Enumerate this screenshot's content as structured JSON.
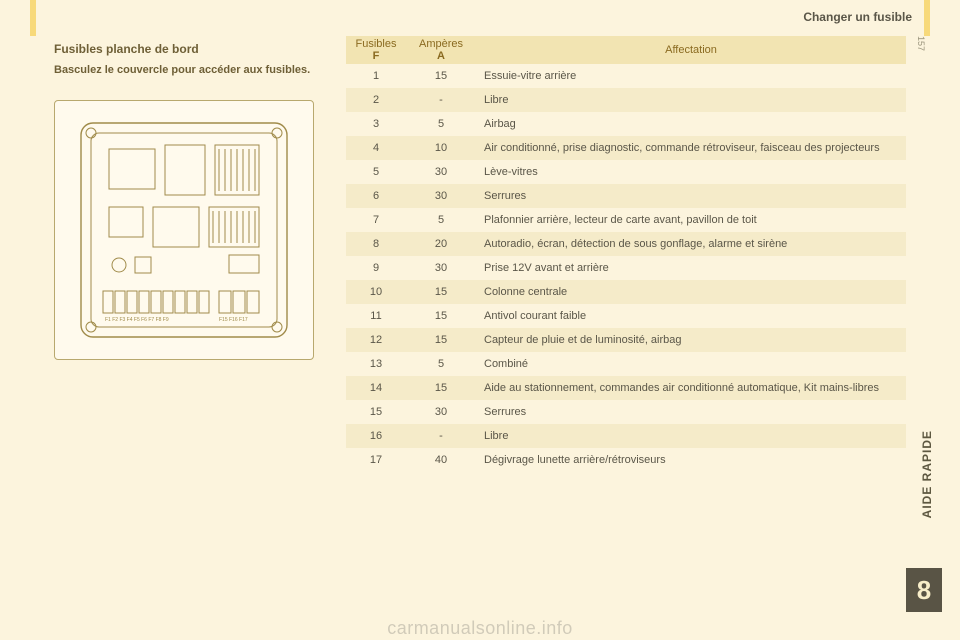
{
  "colors": {
    "page_bg": "#fcf4dd",
    "accent": "#f7d97a",
    "header_bg": "#f2e4b2",
    "header_text": "#8a6a20",
    "row_alt": "#f5ebc9",
    "body_text": "#5a5648",
    "section_block_bg": "#595445",
    "section_block_fg": "#f8eec9",
    "fusebox_bg": "#fffaed",
    "fusebox_border": "#b8a86e"
  },
  "header_right": "Changer un fusible",
  "page_number": "157",
  "left": {
    "title": "Fusibles planche de bord",
    "instruction": "Basculez le couvercle pour accéder aux fusibles."
  },
  "table": {
    "columns": {
      "fuse_label": "Fusibles",
      "fuse_sub": "F",
      "amp_label": "Ampères",
      "amp_sub": "A",
      "affect": "Affectation"
    },
    "rows": [
      {
        "f": "1",
        "a": "15",
        "d": "Essuie-vitre arrière"
      },
      {
        "f": "2",
        "a": "-",
        "d": "Libre"
      },
      {
        "f": "3",
        "a": "5",
        "d": "Airbag"
      },
      {
        "f": "4",
        "a": "10",
        "d": "Air conditionné, prise diagnostic, commande rétroviseur, faisceau des projecteurs"
      },
      {
        "f": "5",
        "a": "30",
        "d": "Lève-vitres"
      },
      {
        "f": "6",
        "a": "30",
        "d": "Serrures"
      },
      {
        "f": "7",
        "a": "5",
        "d": "Plafonnier arrière, lecteur de carte avant, pavillon de toit"
      },
      {
        "f": "8",
        "a": "20",
        "d": "Autoradio, écran, détection de sous gonflage, alarme et sirène"
      },
      {
        "f": "9",
        "a": "30",
        "d": "Prise 12V avant et arrière"
      },
      {
        "f": "10",
        "a": "15",
        "d": "Colonne centrale"
      },
      {
        "f": "11",
        "a": "15",
        "d": "Antivol courant faible"
      },
      {
        "f": "12",
        "a": "15",
        "d": "Capteur de pluie et de luminosité, airbag"
      },
      {
        "f": "13",
        "a": "5",
        "d": "Combiné"
      },
      {
        "f": "14",
        "a": "15",
        "d": "Aide au stationnement, commandes air conditionné automatique, Kit mains-libres"
      },
      {
        "f": "15",
        "a": "30",
        "d": "Serrures"
      },
      {
        "f": "16",
        "a": "-",
        "d": "Libre"
      },
      {
        "f": "17",
        "a": "40",
        "d": "Dégivrage lunette arrière/rétroviseurs"
      }
    ]
  },
  "side_section": "AIDE RAPIDE",
  "section_number": "8",
  "watermark": "carmanualsonline.info"
}
